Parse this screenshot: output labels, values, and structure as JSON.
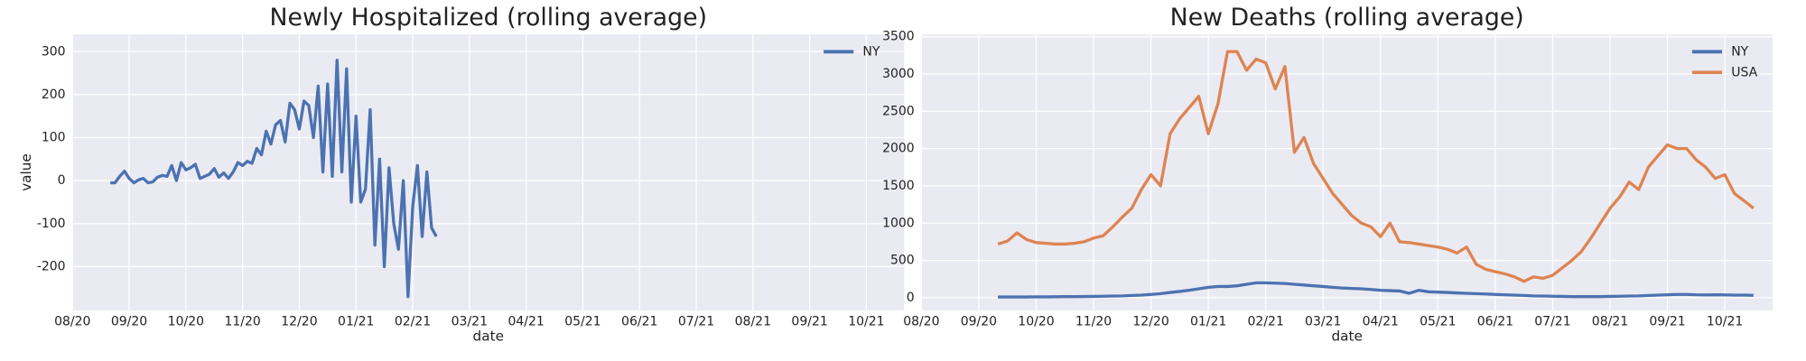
{
  "chart_data": [
    {
      "type": "line",
      "title": "Newly Hospitalized (rolling average)",
      "xlabel": "date",
      "ylabel": "value",
      "x": [
        0,
        1,
        2,
        3,
        4,
        5,
        6,
        7,
        8,
        9,
        10,
        11,
        12,
        13,
        14,
        15,
        16,
        17,
        18,
        19,
        20,
        21,
        22,
        23,
        24,
        25,
        26,
        27,
        28,
        29,
        30,
        31,
        32,
        33,
        34,
        35,
        36,
        37,
        38,
        39,
        40,
        41,
        42,
        43,
        44,
        45,
        46,
        47,
        48,
        49,
        50,
        51,
        52,
        53,
        54,
        55,
        56,
        57,
        58,
        59,
        60,
        61,
        62,
        63,
        64,
        65,
        66,
        67,
        68,
        69
      ],
      "series": [
        {
          "name": "NY",
          "color": "#4c72b0",
          "values": [
            -5,
            -5,
            10,
            22,
            5,
            -5,
            2,
            5,
            -5,
            -3,
            8,
            12,
            10,
            35,
            0,
            42,
            25,
            30,
            38,
            5,
            10,
            15,
            28,
            8,
            18,
            5,
            20,
            42,
            35,
            45,
            40,
            75,
            60,
            115,
            85,
            130,
            140,
            90,
            180,
            165,
            120,
            185,
            175,
            100,
            220,
            20,
            225,
            10,
            280,
            20,
            260,
            -50,
            150,
            -50,
            -20,
            165,
            -150,
            50,
            -200,
            30,
            -100,
            -160,
            0,
            -270,
            -60,
            35,
            -130,
            20,
            -110,
            -130
          ]
        }
      ],
      "xlim": [
        -8,
        168
      ],
      "ylim": [
        -302,
        340
      ],
      "xticks": [
        {
          "value": -8,
          "label": "08/20"
        },
        {
          "value": 4,
          "label": "09/20"
        },
        {
          "value": 16,
          "label": "10/20"
        },
        {
          "value": 28,
          "label": "11/20"
        },
        {
          "value": 40,
          "label": "12/20"
        },
        {
          "value": 52,
          "label": "01/21"
        },
        {
          "value": 64,
          "label": "02/21"
        },
        {
          "value": 76,
          "label": "03/21"
        },
        {
          "value": 88,
          "label": "04/21"
        },
        {
          "value": 100,
          "label": "05/21"
        },
        {
          "value": 112,
          "label": "06/21"
        },
        {
          "value": 124,
          "label": "07/21"
        },
        {
          "value": 136,
          "label": "08/21"
        },
        {
          "value": 148,
          "label": "09/21"
        },
        {
          "value": 160,
          "label": "10/21"
        }
      ],
      "yticks": [
        -200,
        -100,
        0,
        100,
        200,
        300
      ],
      "grid": true,
      "legend": "upper right"
    },
    {
      "type": "line",
      "title": "New Deaths (rolling average)",
      "xlabel": "date",
      "x": [
        0,
        1,
        2,
        3,
        4,
        5,
        6,
        7,
        8,
        9,
        10,
        11,
        12,
        13,
        14,
        15,
        16,
        17,
        18,
        19,
        20,
        21,
        22,
        23,
        24,
        25,
        26,
        27,
        28,
        29,
        30,
        31,
        32,
        33,
        34,
        35,
        36,
        37,
        38,
        39,
        40,
        41,
        42,
        43,
        44,
        45,
        46,
        47,
        48,
        49,
        50,
        51,
        52,
        53,
        54,
        55,
        56,
        57,
        58,
        59,
        60,
        61,
        62,
        63,
        64,
        65,
        66,
        67,
        68,
        69,
        70,
        71,
        72,
        73,
        74,
        75,
        76,
        77,
        78,
        79
      ],
      "series": [
        {
          "name": "NY",
          "color": "#4c72b0",
          "values": [
            10,
            10,
            10,
            10,
            12,
            12,
            14,
            15,
            15,
            16,
            18,
            20,
            22,
            25,
            30,
            35,
            45,
            55,
            70,
            85,
            100,
            120,
            140,
            150,
            150,
            160,
            180,
            200,
            200,
            195,
            190,
            180,
            170,
            160,
            150,
            140,
            130,
            125,
            120,
            110,
            100,
            95,
            90,
            60,
            100,
            80,
            75,
            70,
            65,
            60,
            55,
            50,
            45,
            40,
            35,
            30,
            25,
            22,
            20,
            18,
            15,
            15,
            15,
            15,
            18,
            20,
            22,
            25,
            30,
            35,
            40,
            45,
            45,
            40,
            38,
            40,
            38,
            35,
            35,
            32
          ]
        },
        {
          "name": "USA",
          "color": "#dd8452",
          "values": [
            720,
            760,
            870,
            780,
            740,
            730,
            720,
            720,
            730,
            750,
            800,
            830,
            950,
            1080,
            1200,
            1450,
            1650,
            1500,
            2200,
            2400,
            2550,
            2700,
            2200,
            2600,
            3300,
            3300,
            3050,
            3200,
            3150,
            2800,
            3100,
            1950,
            2150,
            1800,
            1600,
            1400,
            1250,
            1100,
            1000,
            950,
            820,
            1000,
            750,
            740,
            720,
            700,
            680,
            650,
            600,
            680,
            450,
            380,
            350,
            320,
            280,
            220,
            280,
            260,
            300,
            400,
            500,
            620,
            800,
            1000,
            1200,
            1350,
            1550,
            1450,
            1750,
            1900,
            2050,
            2000,
            2000,
            1850,
            1750,
            1600,
            1650,
            1400,
            1300,
            1200
          ]
        }
      ],
      "xlim": [
        -8,
        81
      ],
      "ylim": [
        -170,
        3530
      ],
      "xticks": [
        {
          "value": -8,
          "label": "08/20"
        },
        {
          "value": -2,
          "label": "09/20"
        },
        {
          "value": 4,
          "label": "10/20"
        },
        {
          "value": 10,
          "label": "11/20"
        },
        {
          "value": 16,
          "label": "12/20"
        },
        {
          "value": 22,
          "label": "01/21"
        },
        {
          "value": 28,
          "label": "02/21"
        },
        {
          "value": 34,
          "label": "03/21"
        },
        {
          "value": 40,
          "label": "04/21"
        },
        {
          "value": 46,
          "label": "05/21"
        },
        {
          "value": 52,
          "label": "06/21"
        },
        {
          "value": 58,
          "label": "07/21"
        },
        {
          "value": 64,
          "label": "08/21"
        },
        {
          "value": 70,
          "label": "09/21"
        },
        {
          "value": 76,
          "label": "10/21"
        }
      ],
      "yticks": [
        0,
        500,
        1000,
        1500,
        2000,
        2500,
        3000,
        3500
      ],
      "grid": true,
      "legend": "upper right"
    }
  ]
}
